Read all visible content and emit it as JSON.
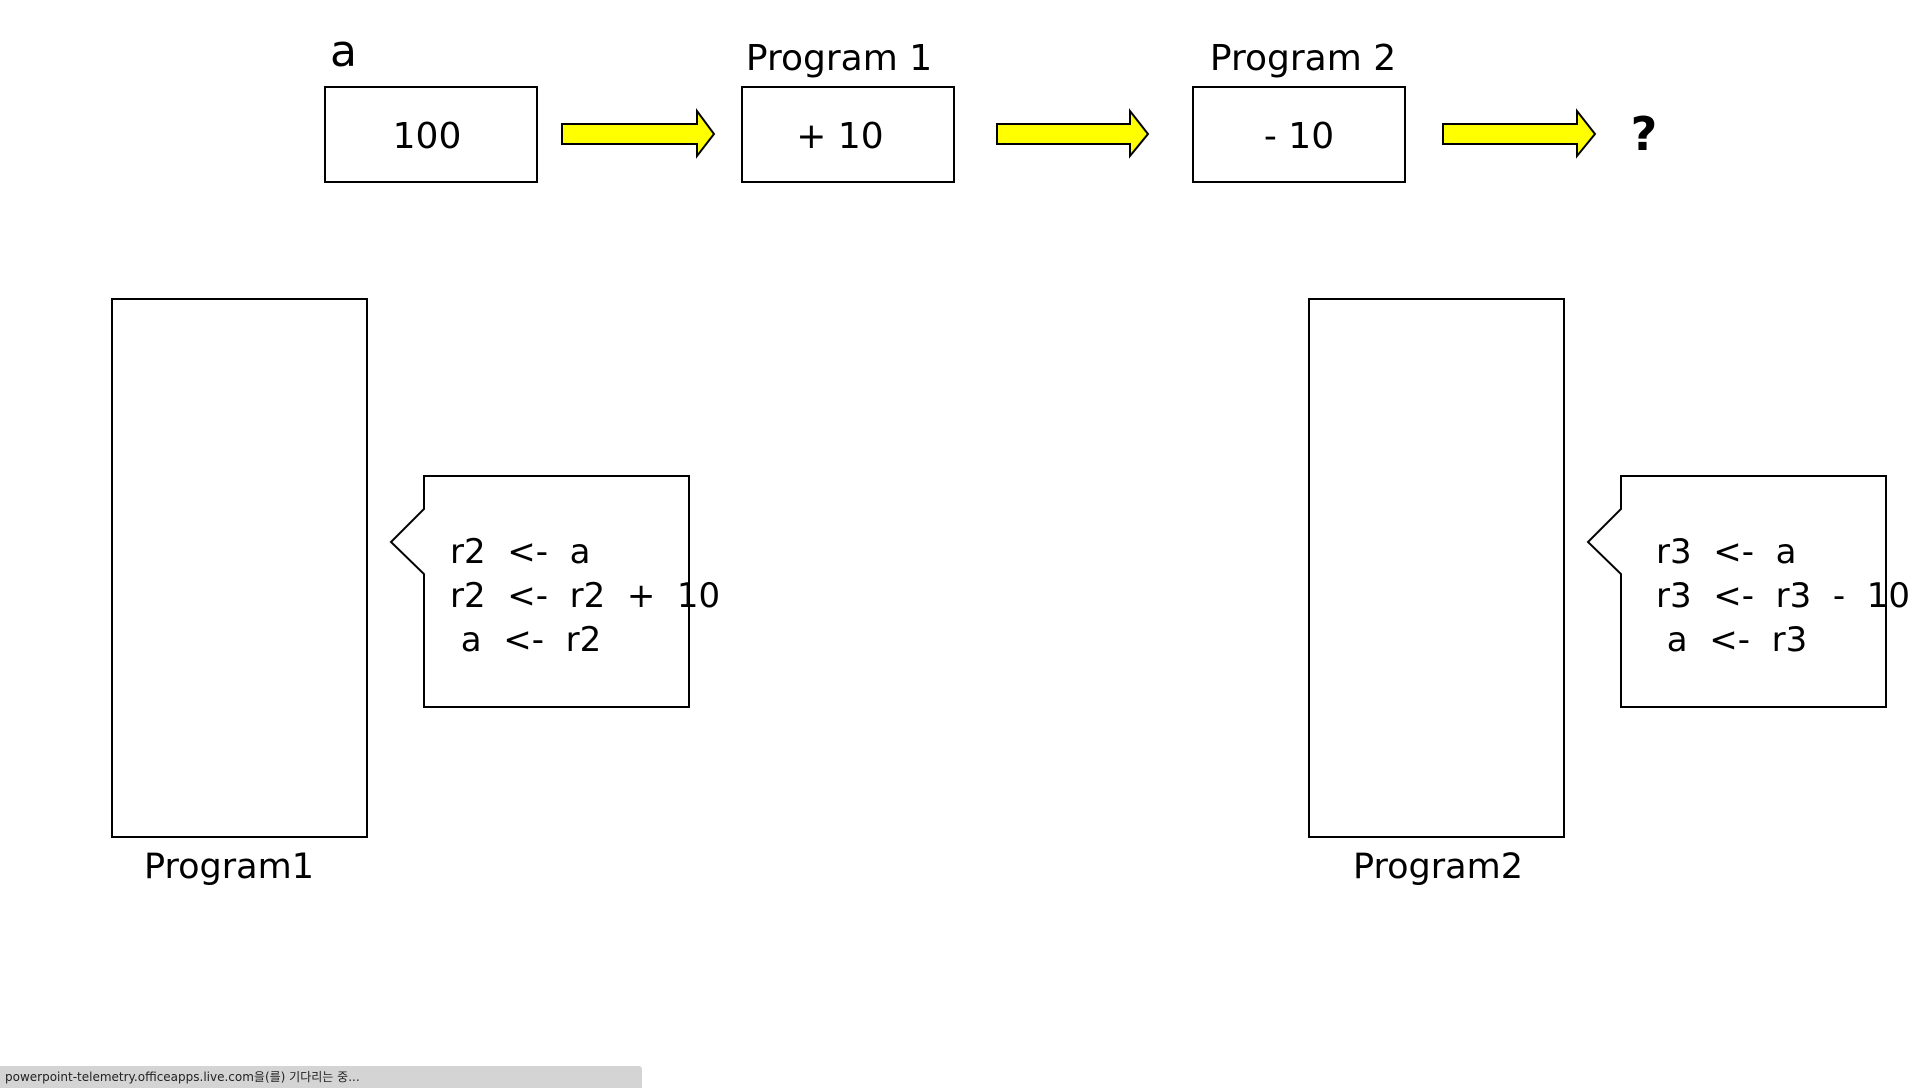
{
  "top_flow": {
    "variable_label": "a",
    "initial_value": "100",
    "program1_title": "Program 1",
    "program1_op": "+ 10",
    "program2_title": "Program 2",
    "program2_op": "- 10",
    "result": "?",
    "arrow_color": "#FFFF00"
  },
  "program1": {
    "label": "Program1",
    "code": [
      "r2  <-  a",
      "r2  <-  r2  +  10",
      " a  <-  r2"
    ]
  },
  "program2": {
    "label": "Program2",
    "code": [
      "r3  <-  a",
      "r3  <-  r3  -  10",
      " a  <-  r3"
    ]
  },
  "status_bar": {
    "text": "powerpoint-telemetry.officeapps.live.com을(를) 기다리는 중..."
  }
}
